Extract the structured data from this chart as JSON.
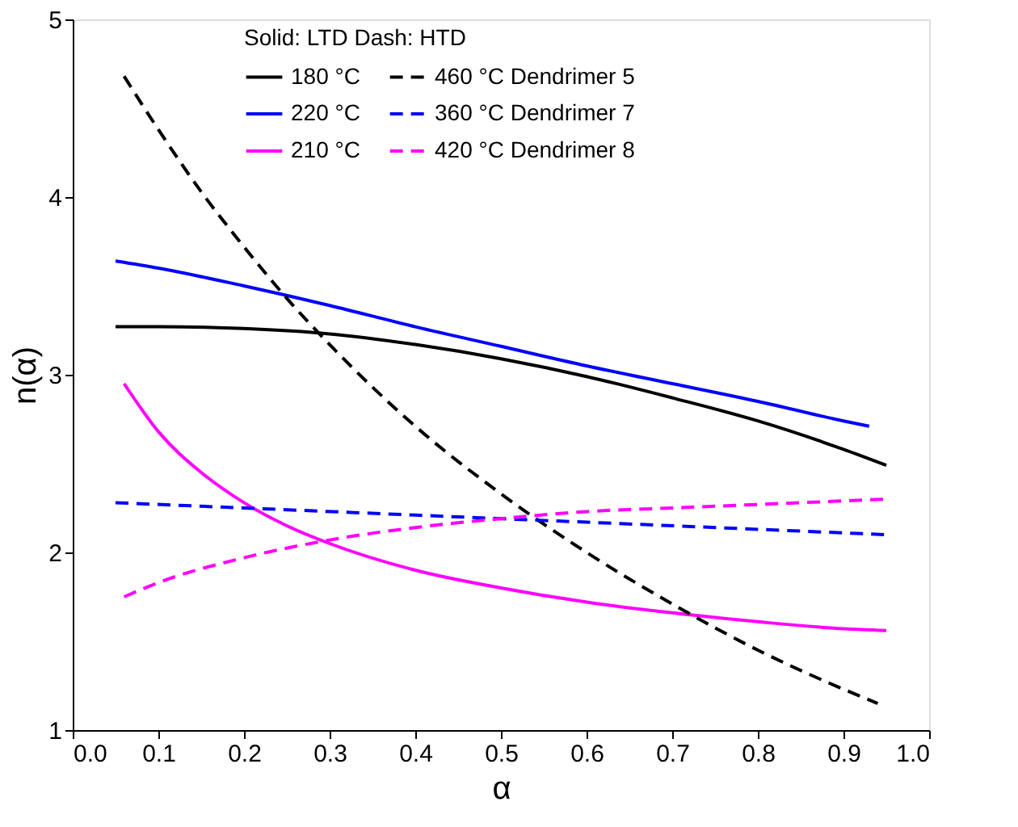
{
  "chart_data": {
    "type": "line",
    "xlabel": "α",
    "ylabel": "n(α)",
    "legend_title": "Solid: LTD   Dash: HTD",
    "legend": "top",
    "grid": false,
    "marker": "none",
    "xlim": [
      0.0,
      1.0
    ],
    "xticks": [
      {
        "value": 0,
        "label": "0.0"
      },
      0.1,
      0.2,
      0.3,
      0.4,
      0.5,
      0.6,
      0.7,
      0.8,
      0.9,
      {
        "value": 1,
        "label": "1.0"
      }
    ],
    "ylim": [
      1,
      5
    ],
    "yticks": [
      1,
      2,
      3,
      4,
      5
    ],
    "series": [
      {
        "name": "180 °C",
        "color": "#000000",
        "line_style": "solid",
        "x": [
          0.05,
          0.1,
          0.2,
          0.3,
          0.4,
          0.5,
          0.6,
          0.7,
          0.8,
          0.9,
          0.95
        ],
        "values": [
          3.27,
          3.27,
          3.26,
          3.23,
          3.17,
          3.09,
          2.99,
          2.87,
          2.74,
          2.58,
          2.49
        ]
      },
      {
        "name": "220 °C",
        "color": "#0000ff",
        "line_style": "solid",
        "x": [
          0.05,
          0.1,
          0.2,
          0.3,
          0.4,
          0.5,
          0.6,
          0.7,
          0.8,
          0.9,
          0.93
        ],
        "values": [
          3.64,
          3.6,
          3.5,
          3.39,
          3.27,
          3.16,
          3.05,
          2.95,
          2.85,
          2.74,
          2.71
        ]
      },
      {
        "name": "210 °C",
        "color": "#ff00ff",
        "line_style": "solid",
        "x": [
          0.06,
          0.1,
          0.15,
          0.2,
          0.25,
          0.3,
          0.4,
          0.5,
          0.6,
          0.7,
          0.8,
          0.9,
          0.95
        ],
        "values": [
          2.95,
          2.68,
          2.45,
          2.28,
          2.15,
          2.05,
          1.9,
          1.8,
          1.72,
          1.66,
          1.61,
          1.57,
          1.56
        ]
      },
      {
        "name": "460 °C  Dendrimer 5",
        "color": "#000000",
        "line_style": "dashed",
        "x": [
          0.06,
          0.1,
          0.15,
          0.2,
          0.25,
          0.3,
          0.35,
          0.4,
          0.5,
          0.6,
          0.7,
          0.8,
          0.9,
          0.94
        ],
        "values": [
          4.68,
          4.38,
          4.03,
          3.72,
          3.43,
          3.17,
          2.93,
          2.71,
          2.33,
          2.0,
          1.71,
          1.45,
          1.23,
          1.15
        ]
      },
      {
        "name": "360 °C  Dendrimer 7",
        "color": "#0000ff",
        "line_style": "dashed",
        "x": [
          0.05,
          0.2,
          0.4,
          0.6,
          0.8,
          0.95
        ],
        "values": [
          2.28,
          2.25,
          2.21,
          2.17,
          2.13,
          2.1
        ]
      },
      {
        "name": "420 °C  Dendrimer 8",
        "color": "#ff00ff",
        "line_style": "dashed",
        "x": [
          0.06,
          0.1,
          0.2,
          0.3,
          0.4,
          0.5,
          0.6,
          0.7,
          0.8,
          0.95
        ],
        "values": [
          1.75,
          1.83,
          1.97,
          2.07,
          2.14,
          2.19,
          2.23,
          2.25,
          2.27,
          2.3
        ]
      }
    ]
  }
}
